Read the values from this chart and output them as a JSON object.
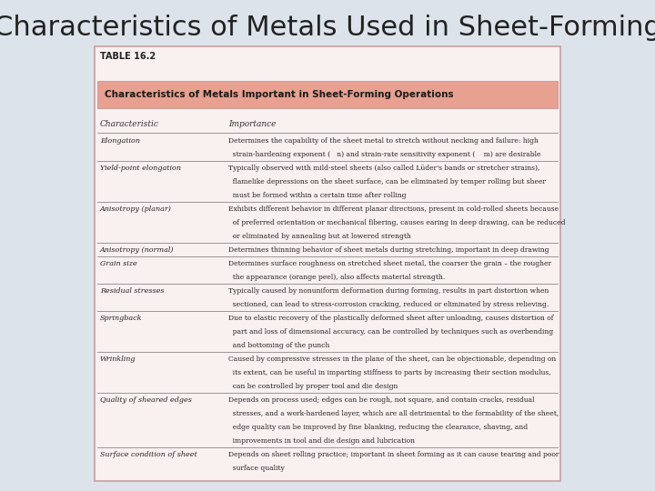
{
  "title": "Characteristics of Metals Used in Sheet-Forming",
  "title_fontsize": 22,
  "title_color": "#222222",
  "background_color": "#dce3ea",
  "table_bg": "#f9f0f0",
  "table_border_color": "#c8a0a0",
  "table_title_bg": "#e8a090",
  "table_title_text": "Characteristics of Metals Important in Sheet-Forming Operations",
  "table_label": "TABLE 16.2",
  "col_header_char": "Characteristic",
  "col_header_imp": "Importance",
  "rows": [
    {
      "char": "Elongation",
      "imp": "Determines the capability of the sheet metal to stretch without necking and failure: high\n  strain-hardening exponent (   n) and strain-rate sensitivity exponent (    m) are desirable"
    },
    {
      "char": "Yield-point elongation",
      "imp": "Typically observed with mild-steel sheets (also called Lüder's bands or stretcher strains),\n  flamelike depressions on the sheet surface, can be eliminated by temper rolling but sheer\n  must be formed within a certain time after rolling"
    },
    {
      "char": "Anisotropy (planar)",
      "imp": "Exhibits different behavior in different planar directions, present in cold-rolled sheets because\n  of preferred orientation or mechanical fibering, causes earing in deep drawing, can be reduced\n  or eliminated by annealing but at lowered strength"
    },
    {
      "char": "Anisotropy (normal)",
      "imp": "Determines thinning behavior of sheet metals during stretching, important in deep drawing"
    },
    {
      "char": "Grain size",
      "imp": "Determines surface roughness on stretched sheet metal, the coarser the grain – the rougher\n  the appearance (orange peel), also affects material strength."
    },
    {
      "char": "Residual stresses",
      "imp": "Typically caused by nonuniform deformation during forming, results in part distortion when\n  sectioned, can lead to stress-corrosion cracking, reduced or eliminated by stress relieving."
    },
    {
      "char": "Springback",
      "imp": "Due to elastic recovery of the plastically deformed sheet after unloading, causes distortion of\n  part and loss of dimensional accuracy, can be controlled by techniques such as overbending\n  and bottoming of the punch"
    },
    {
      "char": "Wrinkling",
      "imp": "Caused by compressive stresses in the plane of the sheet, can be objectionable, depending on\n  its extent, can be useful in imparting stiffness to parts by increasing their section modulus,\n  can be controlled by proper tool and die design"
    },
    {
      "char": "Quality of sheared edges",
      "imp": "Depends on process used; edges can be rough, not square, and contain cracks, residual\n  stresses, and a work-hardened layer, which are all detrimental to the formability of the sheet,\n  edge quality can be improved by fine blanking, reducing the clearance, shaving, and\n  improvements in tool and die design and lubrication"
    },
    {
      "char": "Surface condition of sheet",
      "imp": "Depends on sheet rolling practice; important in sheet forming as it can cause tearing and poor\n  surface quality"
    }
  ]
}
